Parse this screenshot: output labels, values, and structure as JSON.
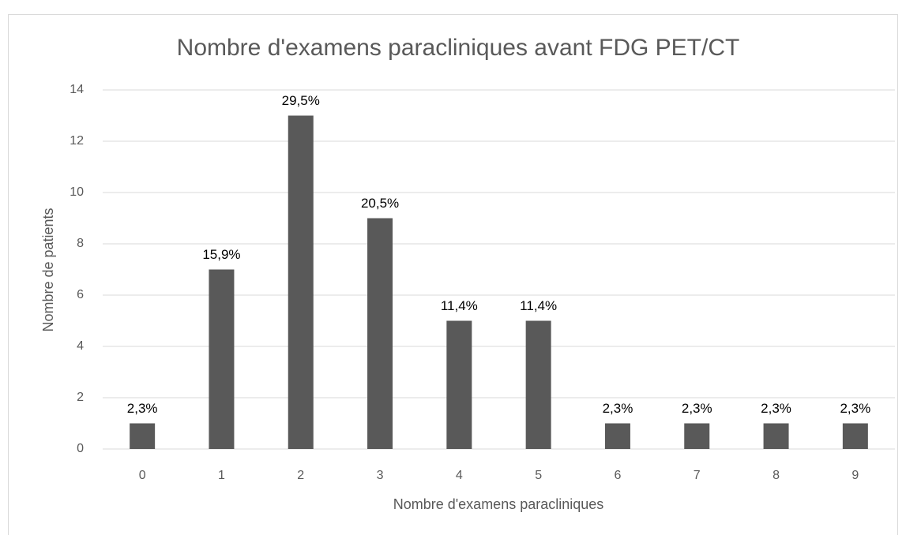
{
  "chart_data": {
    "type": "bar",
    "title": "Nombre d'examens paracliniques avant FDG PET/CT",
    "x_label": "Nombre d'examens paracliniques",
    "y_label": "Nombre de patients",
    "categories": [
      "0",
      "1",
      "2",
      "3",
      "4",
      "5",
      "6",
      "7",
      "8",
      "9"
    ],
    "values": [
      1,
      7,
      13,
      9,
      5,
      5,
      1,
      1,
      1,
      1
    ],
    "value_labels": [
      "2,3%",
      "15,9%",
      "29,5%",
      "20,5%",
      "11,4%",
      "11,4%",
      "2,3%",
      "2,3%",
      "2,3%",
      "2,3%"
    ],
    "color": "#595959",
    "ylim": [
      0,
      14
    ],
    "yticks": [
      0,
      2,
      4,
      6,
      8,
      10,
      12,
      14
    ],
    "grid": true
  }
}
